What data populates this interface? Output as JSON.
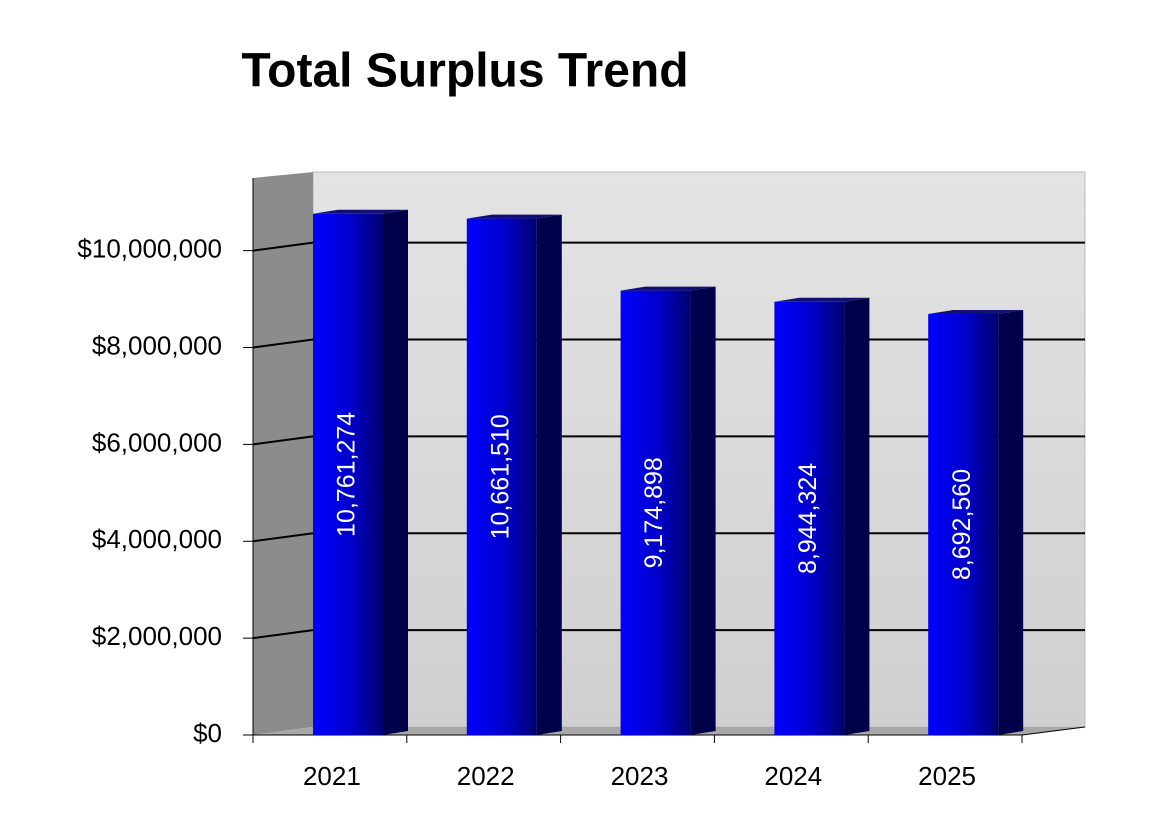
{
  "chart_data": {
    "type": "bar3d",
    "title": "Total Surplus Trend",
    "categories": [
      "2021",
      "2022",
      "2023",
      "2024",
      "2025"
    ],
    "values": [
      10761274,
      10661510,
      9174898,
      8944324,
      8692560
    ],
    "value_labels": [
      "10,761,274",
      "10,661,510",
      "9,174,898",
      "8,944,324",
      "8,692,560"
    ],
    "color": "#0000e0",
    "ylim": [
      0,
      11500000
    ],
    "yticks": [
      {
        "value": 0,
        "label": "$0"
      },
      {
        "value": 2000000,
        "label": "$2,000,000"
      },
      {
        "value": 4000000,
        "label": "$4,000,000"
      },
      {
        "value": 6000000,
        "label": "$6,000,000"
      },
      {
        "value": 8000000,
        "label": "$8,000,000"
      },
      {
        "value": 10000000,
        "label": "$10,000,000"
      }
    ],
    "grid": true
  }
}
